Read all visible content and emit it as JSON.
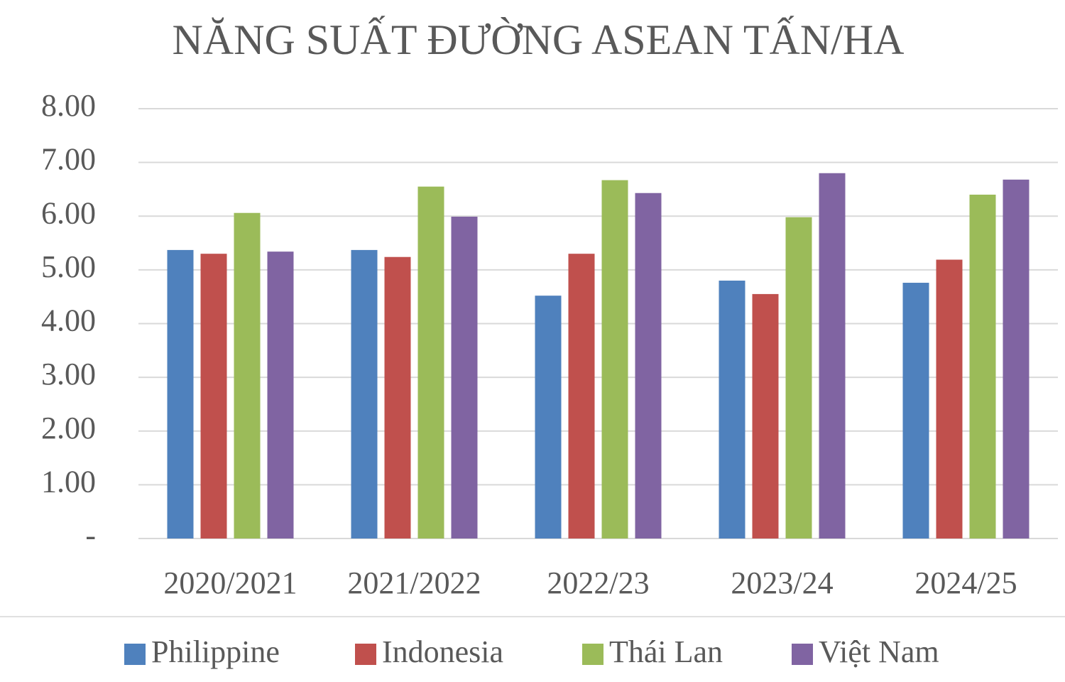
{
  "chart_data": {
    "type": "bar",
    "title": "NĂNG SUẤT ĐƯỜNG ASEAN TẤN/HA",
    "categories": [
      "2020/2021",
      "2021/2022",
      "2022/23",
      "2023/24",
      "2024/25"
    ],
    "series": [
      {
        "name": "Philippine",
        "color": "#4f81bd",
        "values": [
          5.37,
          5.37,
          4.52,
          4.8,
          4.76
        ]
      },
      {
        "name": "Indonesia",
        "color": "#c0504d",
        "values": [
          5.3,
          5.24,
          5.3,
          4.55,
          5.19
        ]
      },
      {
        "name": "Thái Lan",
        "color": "#9bbb59",
        "values": [
          6.06,
          6.55,
          6.67,
          5.98,
          6.4
        ]
      },
      {
        "name": "Việt Nam",
        "color": "#8064a2",
        "values": [
          5.34,
          5.99,
          6.43,
          6.8,
          6.68
        ]
      }
    ],
    "ylim": [
      0,
      8
    ],
    "yticks": [
      {
        "value": 0,
        "label": "-"
      },
      {
        "value": 1,
        "label": "1.00"
      },
      {
        "value": 2,
        "label": "2.00"
      },
      {
        "value": 3,
        "label": "3.00"
      },
      {
        "value": 4,
        "label": "4.00"
      },
      {
        "value": 5,
        "label": "5.00"
      },
      {
        "value": 6,
        "label": "6.00"
      },
      {
        "value": 7,
        "label": "7.00"
      },
      {
        "value": 8,
        "label": "8.00"
      }
    ],
    "grid": true,
    "legend": "bottom"
  }
}
